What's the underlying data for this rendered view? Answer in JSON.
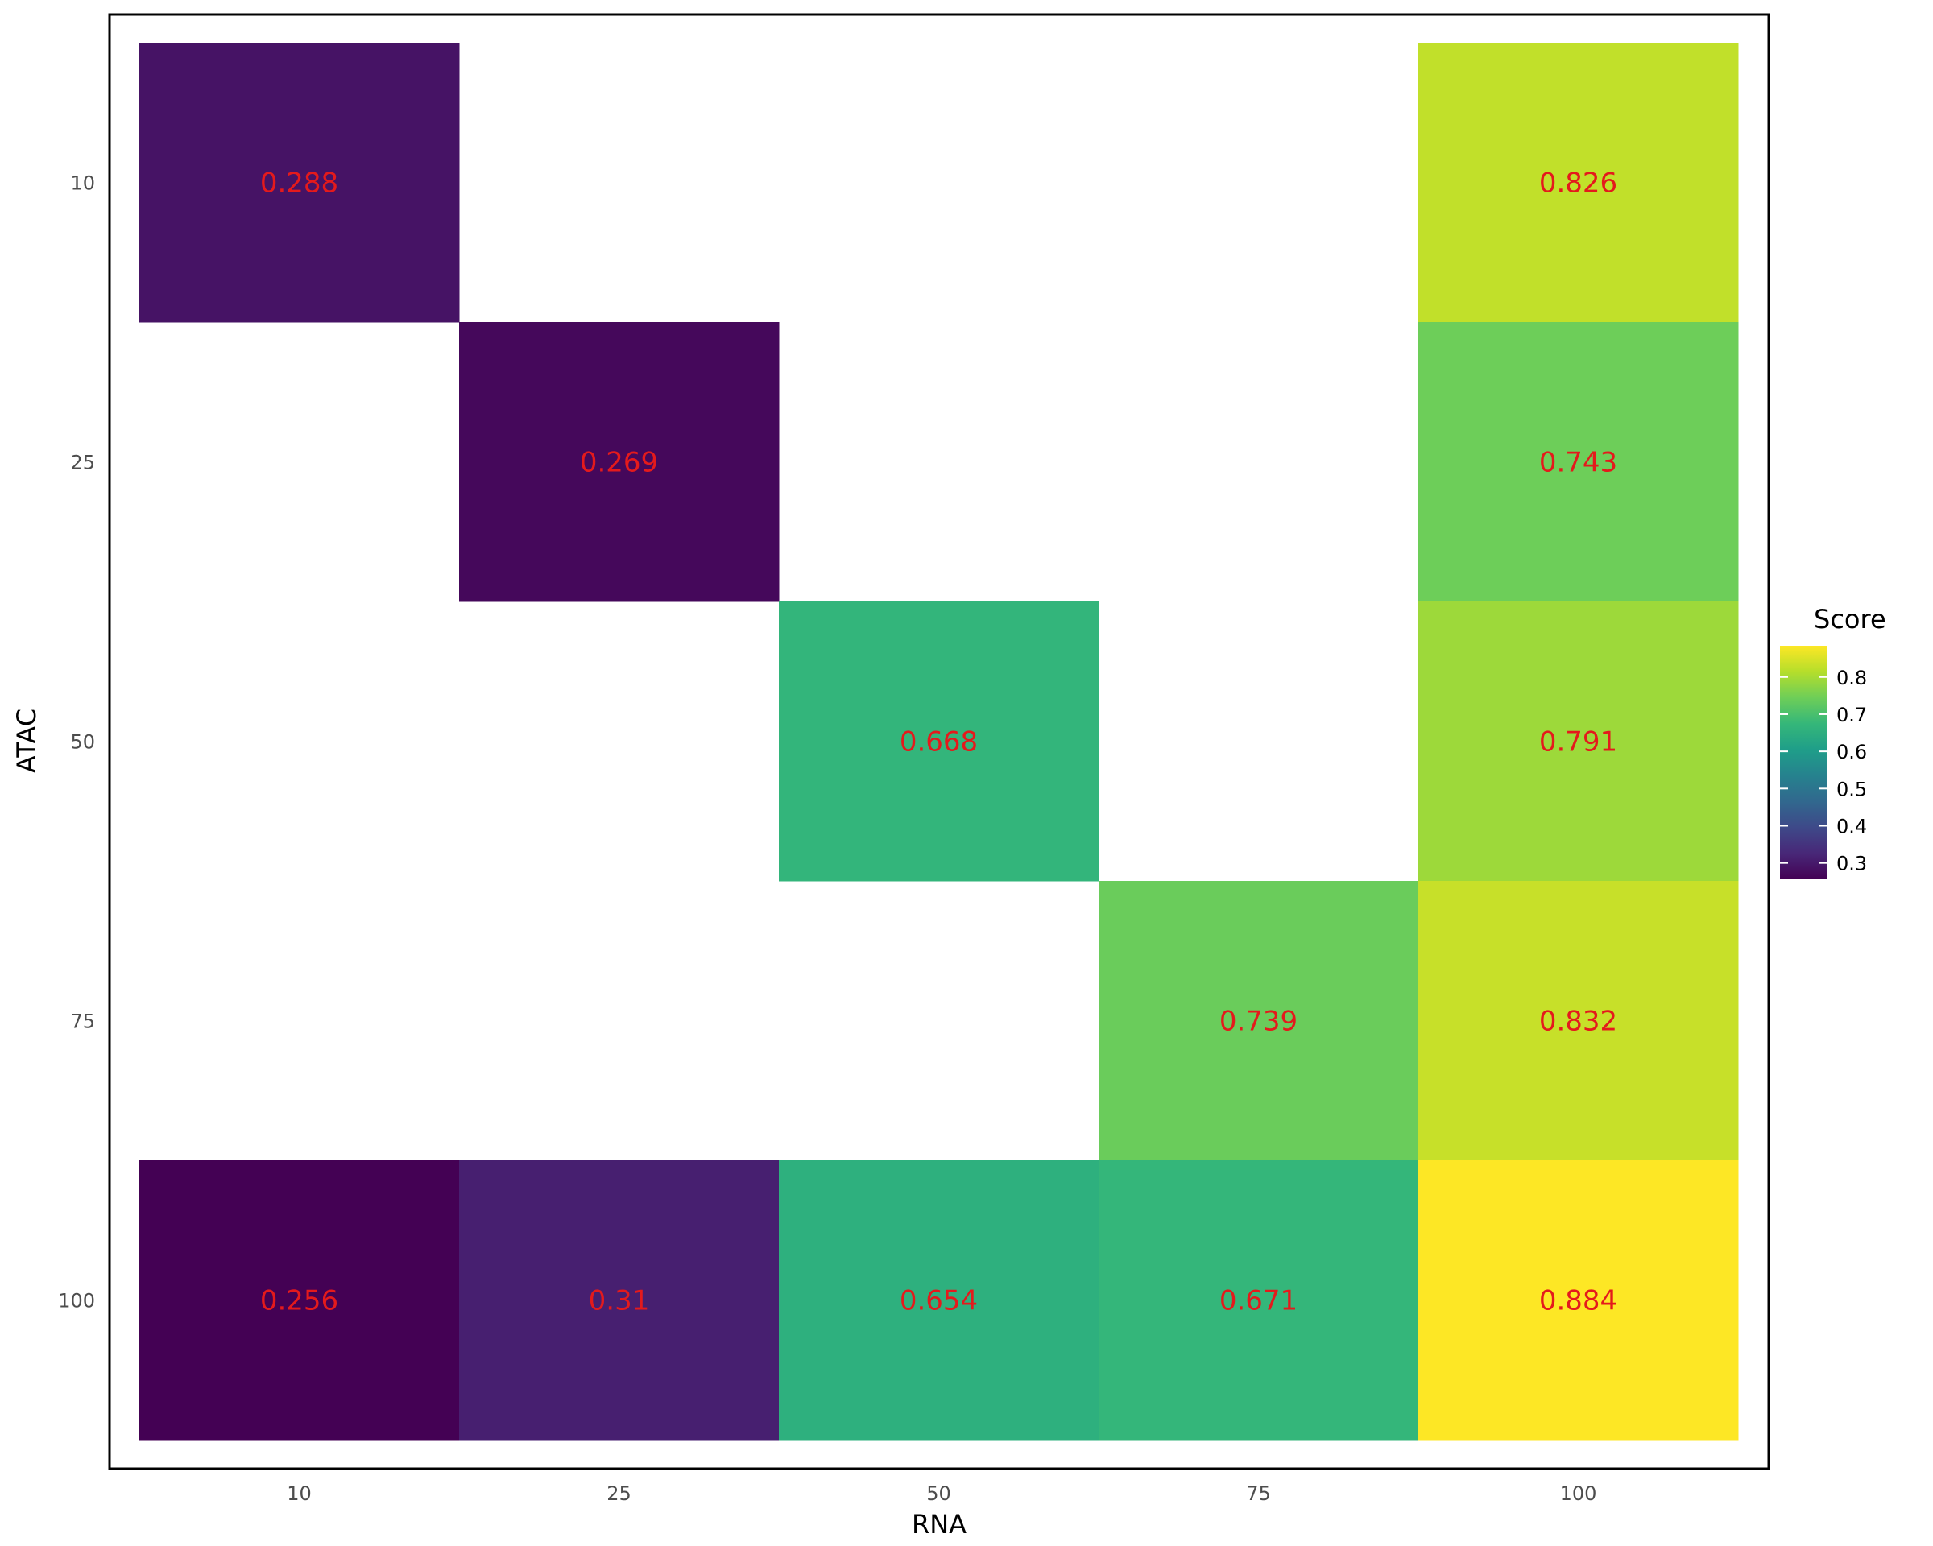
{
  "chart_data": {
    "type": "heatmap",
    "x_categories": [
      "10",
      "25",
      "50",
      "75",
      "100"
    ],
    "y_categories": [
      "10",
      "25",
      "50",
      "75",
      "100"
    ],
    "xlabel": "RNA",
    "ylabel": "ATAC",
    "cells": [
      {
        "x": "10",
        "y": "10",
        "value": 0.288,
        "label": "0.288"
      },
      {
        "x": "100",
        "y": "10",
        "value": 0.826,
        "label": "0.826"
      },
      {
        "x": "25",
        "y": "25",
        "value": 0.269,
        "label": "0.269"
      },
      {
        "x": "100",
        "y": "25",
        "value": 0.743,
        "label": "0.743"
      },
      {
        "x": "50",
        "y": "50",
        "value": 0.668,
        "label": "0.668"
      },
      {
        "x": "100",
        "y": "50",
        "value": 0.791,
        "label": "0.791"
      },
      {
        "x": "75",
        "y": "75",
        "value": 0.739,
        "label": "0.739"
      },
      {
        "x": "100",
        "y": "75",
        "value": 0.832,
        "label": "0.832"
      },
      {
        "x": "10",
        "y": "100",
        "value": 0.256,
        "label": "0.256"
      },
      {
        "x": "25",
        "y": "100",
        "value": 0.31,
        "label": "0.31"
      },
      {
        "x": "50",
        "y": "100",
        "value": 0.654,
        "label": "0.654"
      },
      {
        "x": "75",
        "y": "100",
        "value": 0.671,
        "label": "0.671"
      },
      {
        "x": "100",
        "y": "100",
        "value": 0.884,
        "label": "0.884"
      }
    ],
    "color_scale": {
      "name": "viridis",
      "min": 0.256,
      "max": 0.884,
      "stops": [
        "#440154",
        "#482878",
        "#3e4989",
        "#31688e",
        "#26828e",
        "#1f9e89",
        "#35b779",
        "#6ece58",
        "#b5de2b",
        "#fde725"
      ]
    },
    "legend": {
      "title": "Score",
      "position": "right",
      "ticks": [
        "0.3",
        "0.4",
        "0.5",
        "0.6",
        "0.7",
        "0.8"
      ]
    },
    "label_color": "#e41a1c",
    "panel_border_color": "#000000"
  }
}
